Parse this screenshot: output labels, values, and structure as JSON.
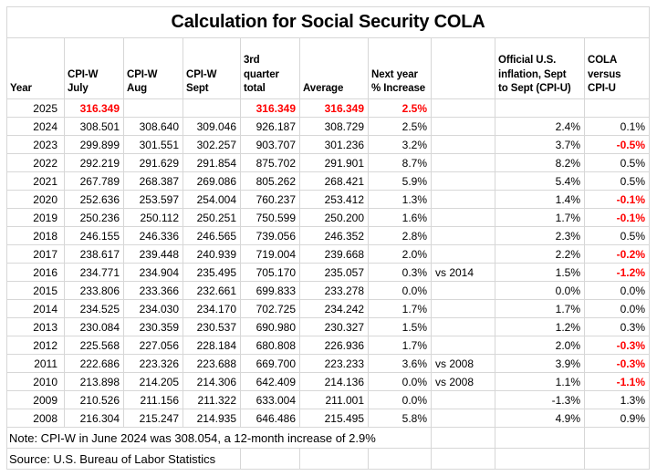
{
  "title": "Calculation for Social Security COLA",
  "colors": {
    "highlight_red": "#ff0000",
    "gridline": "#d7d7d7",
    "text": "#000000",
    "background": "#ffffff"
  },
  "chart_data": {
    "type": "table",
    "title": "Calculation for Social Security COLA",
    "columns": [
      "Year",
      "CPI-W\nJuly",
      "CPI-W\nAug",
      "CPI-W\nSept",
      "3rd\nquarter\ntotal",
      "Average",
      "Next year\n% Increase",
      "",
      "Official U.S.\ninflation, Sept\nto Sept (CPI-U)",
      "COLA\nversus\nCPI-U"
    ],
    "column_keys": [
      "year",
      "cpiw-july",
      "cpiw-aug",
      "cpiw-sept",
      "q3-total",
      "average",
      "next-year-increase",
      "comparison-note",
      "cpiu-inflation",
      "cola-vs-cpiu"
    ],
    "rows": [
      {
        "cells": [
          "2025",
          "316.349",
          "",
          "",
          "316.349",
          "316.349",
          "2.5%",
          "",
          "",
          ""
        ],
        "red": [
          1,
          4,
          5,
          6
        ]
      },
      {
        "cells": [
          "2024",
          "308.501",
          "308.640",
          "309.046",
          "926.187",
          "308.729",
          "2.5%",
          "",
          "2.4%",
          "0.1%"
        ],
        "red": []
      },
      {
        "cells": [
          "2023",
          "299.899",
          "301.551",
          "302.257",
          "903.707",
          "301.236",
          "3.2%",
          "",
          "3.7%",
          "-0.5%"
        ],
        "red": [
          9
        ]
      },
      {
        "cells": [
          "2022",
          "292.219",
          "291.629",
          "291.854",
          "875.702",
          "291.901",
          "8.7%",
          "",
          "8.2%",
          "0.5%"
        ],
        "red": []
      },
      {
        "cells": [
          "2021",
          "267.789",
          "268.387",
          "269.086",
          "805.262",
          "268.421",
          "5.9%",
          "",
          "5.4%",
          "0.5%"
        ],
        "red": []
      },
      {
        "cells": [
          "2020",
          "252.636",
          "253.597",
          "254.004",
          "760.237",
          "253.412",
          "1.3%",
          "",
          "1.4%",
          "-0.1%"
        ],
        "red": [
          9
        ]
      },
      {
        "cells": [
          "2019",
          "250.236",
          "250.112",
          "250.251",
          "750.599",
          "250.200",
          "1.6%",
          "",
          "1.7%",
          "-0.1%"
        ],
        "red": [
          9
        ]
      },
      {
        "cells": [
          "2018",
          "246.155",
          "246.336",
          "246.565",
          "739.056",
          "246.352",
          "2.8%",
          "",
          "2.3%",
          "0.5%"
        ],
        "red": []
      },
      {
        "cells": [
          "2017",
          "238.617",
          "239.448",
          "240.939",
          "719.004",
          "239.668",
          "2.0%",
          "",
          "2.2%",
          "-0.2%"
        ],
        "red": [
          9
        ]
      },
      {
        "cells": [
          "2016",
          "234.771",
          "234.904",
          "235.495",
          "705.170",
          "235.057",
          "0.3%",
          "vs 2014",
          "1.5%",
          "-1.2%"
        ],
        "red": [
          9
        ]
      },
      {
        "cells": [
          "2015",
          "233.806",
          "233.366",
          "232.661",
          "699.833",
          "233.278",
          "0.0%",
          "",
          "0.0%",
          "0.0%"
        ],
        "red": []
      },
      {
        "cells": [
          "2014",
          "234.525",
          "234.030",
          "234.170",
          "702.725",
          "234.242",
          "1.7%",
          "",
          "1.7%",
          "0.0%"
        ],
        "red": []
      },
      {
        "cells": [
          "2013",
          "230.084",
          "230.359",
          "230.537",
          "690.980",
          "230.327",
          "1.5%",
          "",
          "1.2%",
          "0.3%"
        ],
        "red": []
      },
      {
        "cells": [
          "2012",
          "225.568",
          "227.056",
          "228.184",
          "680.808",
          "226.936",
          "1.7%",
          "",
          "2.0%",
          "-0.3%"
        ],
        "red": [
          9
        ]
      },
      {
        "cells": [
          "2011",
          "222.686",
          "223.326",
          "223.688",
          "669.700",
          "223.233",
          "3.6%",
          "vs 2008",
          "3.9%",
          "-0.3%"
        ],
        "red": [
          9
        ]
      },
      {
        "cells": [
          "2010",
          "213.898",
          "214.205",
          "214.306",
          "642.409",
          "214.136",
          "0.0%",
          "vs 2008",
          "1.1%",
          "-1.1%"
        ],
        "red": [
          9
        ]
      },
      {
        "cells": [
          "2009",
          "210.526",
          "211.156",
          "211.322",
          "633.004",
          "211.001",
          "0.0%",
          "",
          "-1.3%",
          "1.3%"
        ],
        "red": []
      },
      {
        "cells": [
          "2008",
          "216.304",
          "215.247",
          "214.935",
          "646.486",
          "215.495",
          "5.8%",
          "",
          "4.9%",
          "0.9%"
        ],
        "red": []
      }
    ],
    "notes": {
      "note": "Note: CPI-W in June 2024 was 308.054, a 12-month increase of 2.9%",
      "source": "Source: U.S. Bureau of Labor Statistics"
    }
  }
}
